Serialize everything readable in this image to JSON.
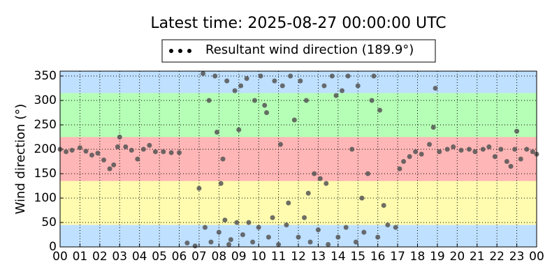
{
  "chart_data": {
    "type": "scatter",
    "title": "Latest time: 2025-08-27 00:00:00 UTC",
    "ylabel": "Wind direction (°)",
    "legend": "upper center",
    "grid": true,
    "xlim": [
      0,
      24
    ],
    "ylim": [
      0,
      360
    ],
    "xticks": [
      {
        "value": 0,
        "label": "00"
      },
      {
        "value": 1,
        "label": "01"
      },
      {
        "value": 2,
        "label": "02"
      },
      {
        "value": 3,
        "label": "03"
      },
      {
        "value": 4,
        "label": "04"
      },
      {
        "value": 5,
        "label": "05"
      },
      {
        "value": 6,
        "label": "06"
      },
      {
        "value": 7,
        "label": "07"
      },
      {
        "value": 8,
        "label": "08"
      },
      {
        "value": 9,
        "label": "09"
      },
      {
        "value": 10,
        "label": "10"
      },
      {
        "value": 11,
        "label": "11"
      },
      {
        "value": 12,
        "label": "12"
      },
      {
        "value": 13,
        "label": "13"
      },
      {
        "value": 14,
        "label": "14"
      },
      {
        "value": 15,
        "label": "15"
      },
      {
        "value": 16,
        "label": "16"
      },
      {
        "value": 17,
        "label": "17"
      },
      {
        "value": 18,
        "label": "18"
      },
      {
        "value": 19,
        "label": "19"
      },
      {
        "value": 20,
        "label": "20"
      },
      {
        "value": 21,
        "label": "21"
      },
      {
        "value": 22,
        "label": "22"
      },
      {
        "value": 23,
        "label": "23"
      },
      {
        "value": 24,
        "label": "00"
      }
    ],
    "yticks": [
      0,
      50,
      100,
      150,
      200,
      250,
      300,
      350
    ],
    "bands": [
      {
        "from": 0,
        "to": 45,
        "color": "#bfe0ff"
      },
      {
        "from": 45,
        "to": 135,
        "color": "#fffcb0"
      },
      {
        "from": 135,
        "to": 225,
        "color": "#ffb6b6"
      },
      {
        "from": 225,
        "to": 315,
        "color": "#b6ffb6"
      },
      {
        "from": 315,
        "to": 360,
        "color": "#bfe0ff"
      }
    ],
    "series": [
      {
        "name": "Resultant wind direction (189.9°)",
        "color": "#555555",
        "x": [
          0,
          0.3,
          0.6,
          1,
          1.3,
          1.6,
          1.9,
          2.2,
          2.5,
          2.7,
          2.9,
          3.0,
          3.3,
          3.6,
          3.9,
          4.2,
          4.5,
          4.8,
          5.2,
          5.6,
          6.0,
          6.4,
          6.8,
          7.0,
          7.2,
          7.3,
          7.5,
          7.6,
          7.8,
          7.9,
          8.0,
          8.1,
          8.2,
          8.3,
          8.4,
          8.5,
          8.6,
          8.8,
          8.9,
          9.0,
          9.1,
          9.2,
          9.4,
          9.5,
          9.7,
          9.8,
          10.0,
          10.1,
          10.3,
          10.4,
          10.5,
          10.7,
          10.8,
          11.0,
          11.1,
          11.2,
          11.4,
          11.5,
          11.6,
          11.8,
          12.0,
          12.1,
          12.3,
          12.4,
          12.5,
          12.6,
          12.8,
          13.0,
          13.1,
          13.3,
          13.4,
          13.5,
          13.7,
          13.9,
          14.0,
          14.2,
          14.4,
          14.5,
          14.7,
          14.9,
          15.0,
          15.2,
          15.3,
          15.5,
          15.7,
          15.8,
          16.0,
          16.1,
          16.3,
          16.5,
          16.9,
          17.1,
          17.3,
          17.6,
          17.9,
          18.2,
          18.6,
          18.8,
          18.9,
          19.1,
          19.5,
          19.8,
          20.2,
          20.6,
          20.9,
          21.3,
          21.6,
          21.9,
          22.2,
          22.5,
          22.7,
          22.9,
          23.0,
          23.2,
          23.5,
          23.8,
          24
        ],
        "values": [
          200,
          195,
          198,
          203,
          196,
          188,
          192,
          178,
          160,
          168,
          205,
          225,
          205,
          198,
          180,
          200,
          208,
          195,
          195,
          193,
          193,
          8,
          2,
          120,
          355,
          40,
          300,
          10,
          350,
          235,
          30,
          130,
          180,
          55,
          340,
          5,
          15,
          320,
          50,
          240,
          330,
          25,
          345,
          50,
          10,
          300,
          40,
          350,
          290,
          275,
          20,
          60,
          340,
          5,
          210,
          330,
          45,
          90,
          350,
          260,
          20,
          340,
          60,
          300,
          110,
          10,
          150,
          35,
          140,
          330,
          130,
          5,
          350,
          310,
          20,
          320,
          40,
          350,
          200,
          10,
          330,
          100,
          30,
          150,
          300,
          350,
          20,
          280,
          85,
          45,
          40,
          160,
          175,
          185,
          195,
          190,
          210,
          245,
          325,
          195,
          200,
          205,
          198,
          200,
          195,
          200,
          205,
          185,
          200,
          175,
          165,
          200,
          237,
          180,
          200,
          195,
          190
        ]
      }
    ]
  }
}
